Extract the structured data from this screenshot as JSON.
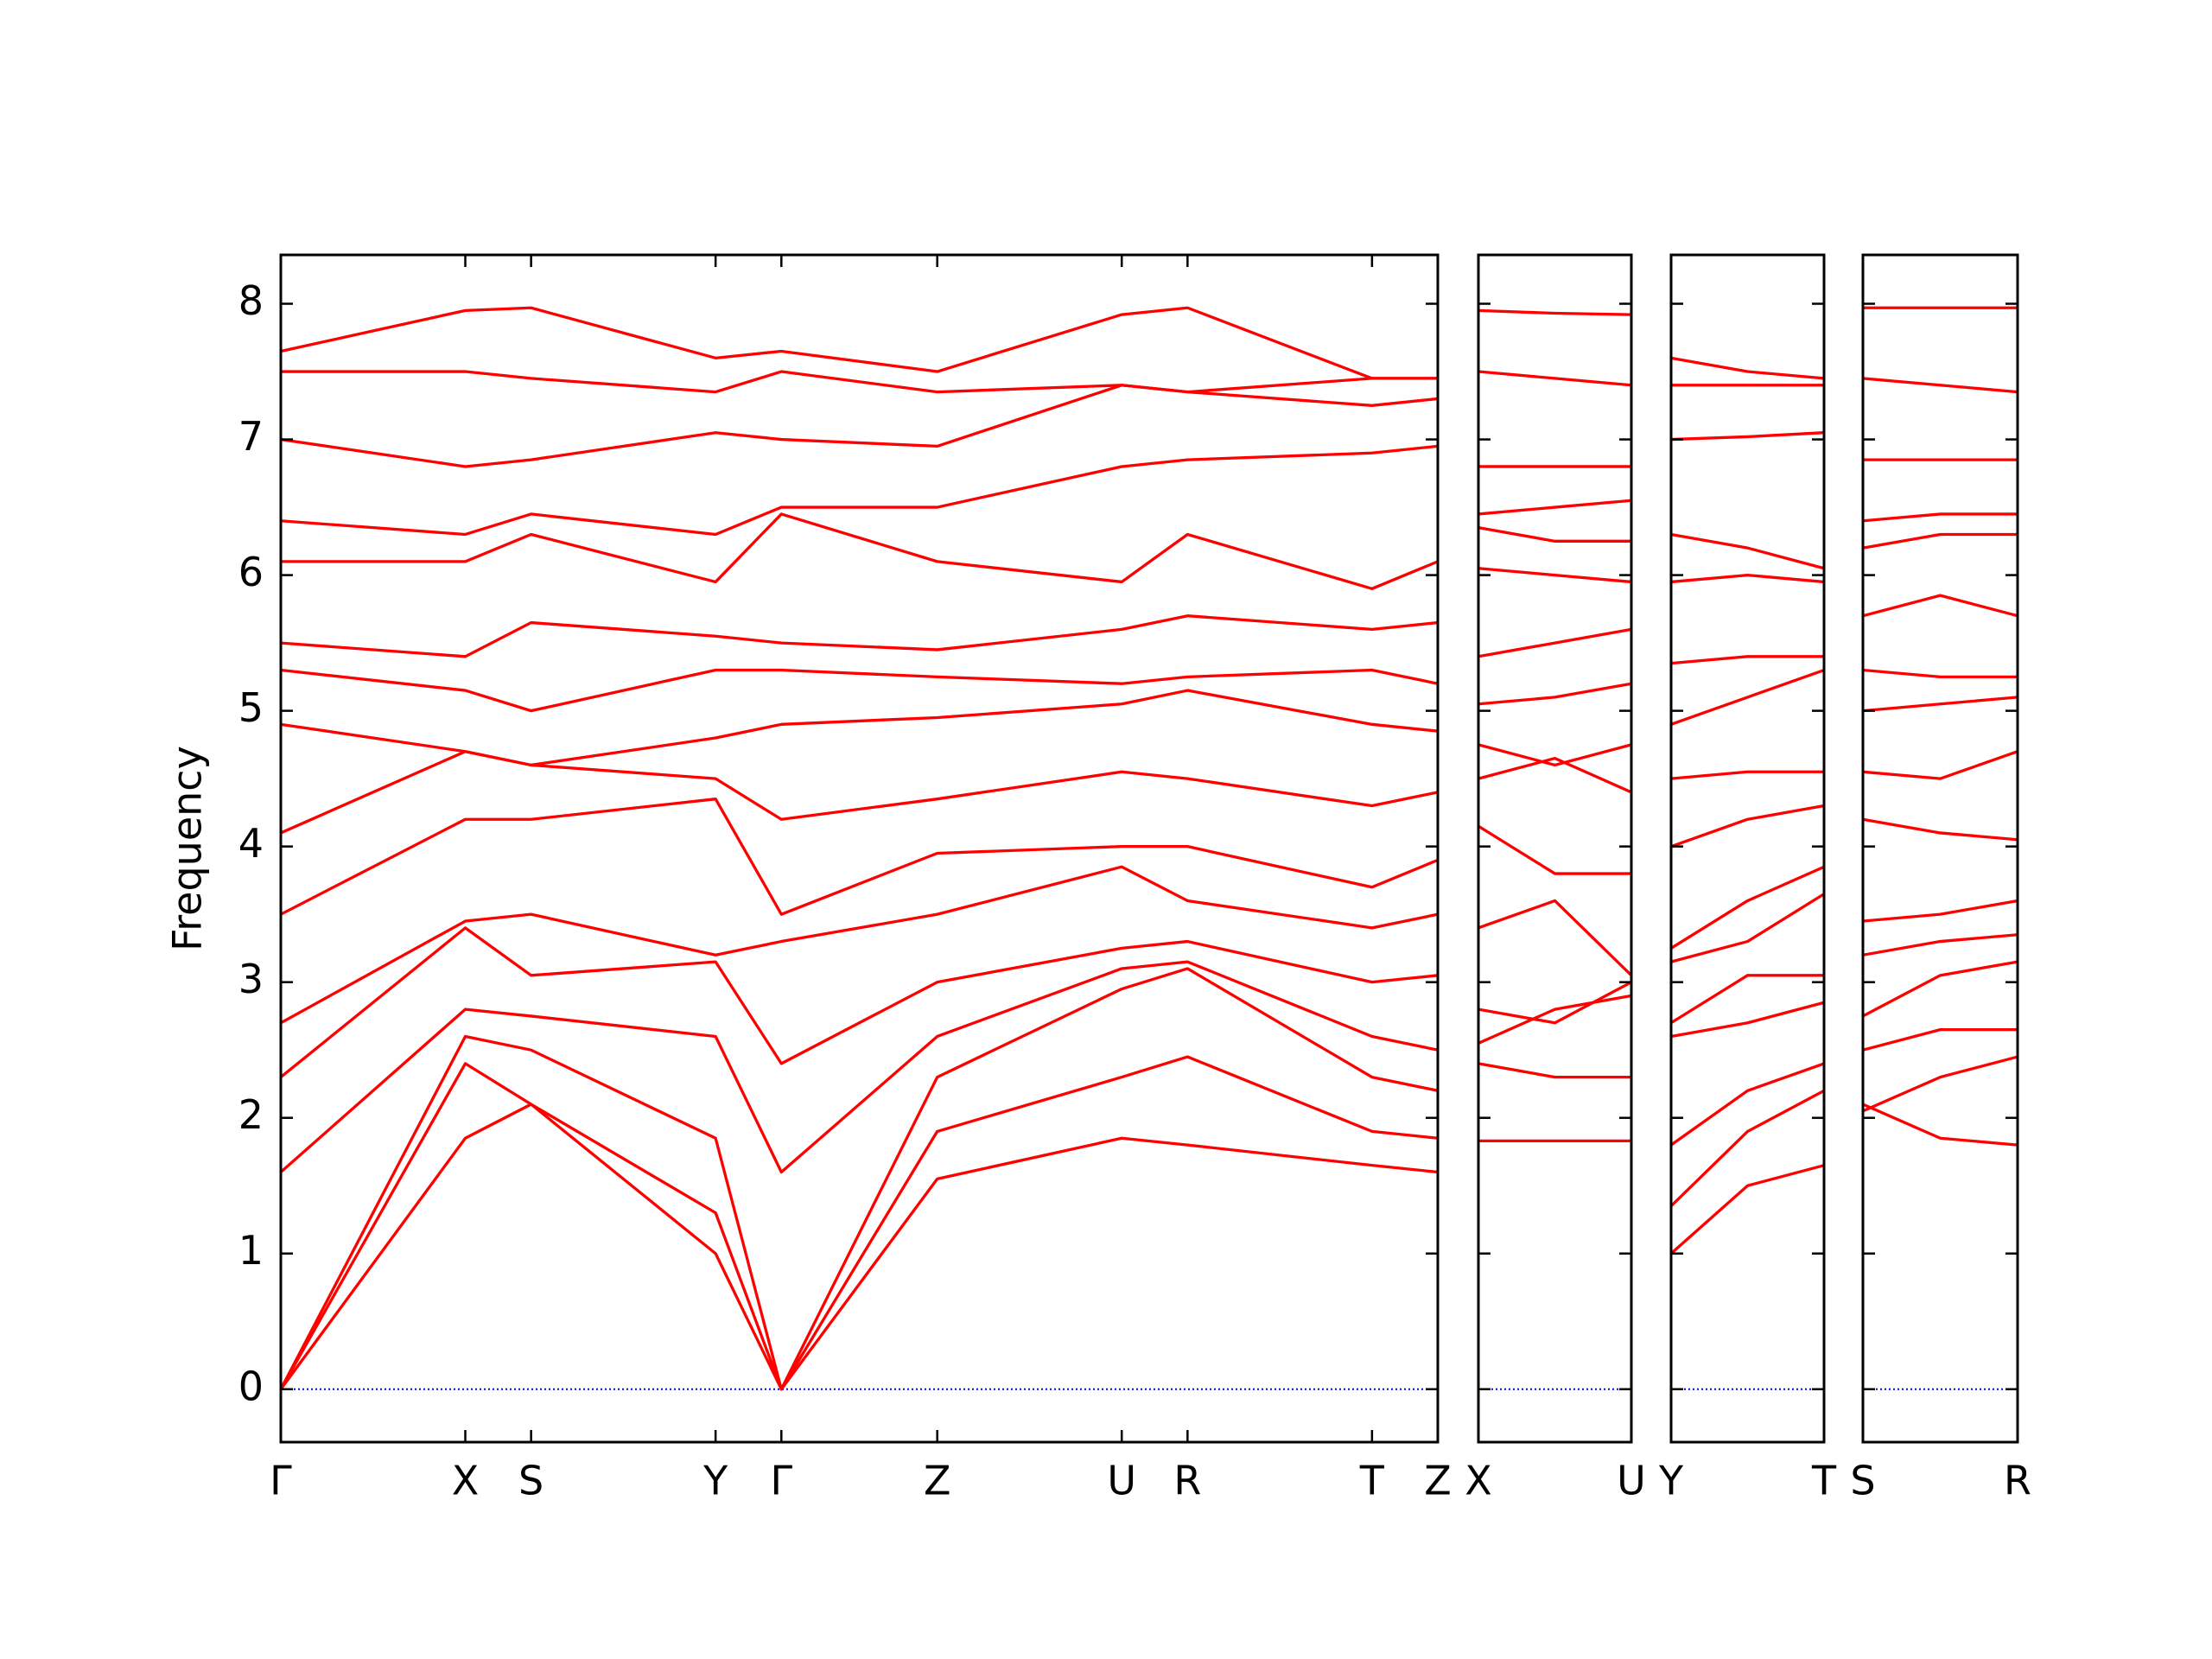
{
  "chart_data": [
    {
      "type": "line",
      "ylabel": "Frequency",
      "color": "#ff0000",
      "ytick_labels": true,
      "x": [
        0,
        1.29,
        1.75,
        3.04,
        3.5,
        4.59,
        5.88,
        6.34,
        7.63,
        8.09
      ],
      "xlim": [
        0,
        8.09
      ],
      "xticks": [
        {
          "value": 0,
          "label": "Γ"
        },
        {
          "value": 1.29,
          "label": "X"
        },
        {
          "value": 1.75,
          "label": "S"
        },
        {
          "value": 3.04,
          "label": "Y"
        },
        {
          "value": 3.5,
          "label": "Γ"
        },
        {
          "value": 4.59,
          "label": "Z"
        },
        {
          "value": 5.88,
          "label": "U"
        },
        {
          "value": 6.34,
          "label": "R"
        },
        {
          "value": 7.63,
          "label": "T"
        },
        {
          "value": 8.09,
          "label": "Z"
        }
      ],
      "ylim": [
        -0.39,
        8.36
      ],
      "yticks": [
        0,
        1,
        2,
        3,
        4,
        5,
        6,
        7,
        8
      ],
      "zero_line": {
        "value": 0,
        "color": "#0000ff"
      },
      "series": [
        {
          "values": [
            0,
            1.85,
            2.1,
            1.0,
            0,
            1.55,
            1.85,
            1.8,
            1.65,
            1.6
          ]
        },
        {
          "values": [
            0,
            2.4,
            2.1,
            1.3,
            0,
            1.9,
            2.3,
            2.45,
            1.9,
            1.85
          ]
        },
        {
          "values": [
            0,
            2.6,
            2.5,
            1.85,
            0,
            2.3,
            2.95,
            3.1,
            2.3,
            2.2
          ]
        },
        {
          "values": [
            1.6,
            2.8,
            2.75,
            2.6,
            1.6,
            2.6,
            3.1,
            3.15,
            2.6,
            2.5
          ]
        },
        {
          "values": [
            2.3,
            3.4,
            3.05,
            3.15,
            2.4,
            3.0,
            3.25,
            3.3,
            3.0,
            3.05
          ]
        },
        {
          "values": [
            2.7,
            3.45,
            3.5,
            3.2,
            3.3,
            3.5,
            3.85,
            3.6,
            3.4,
            3.5
          ]
        },
        {
          "values": [
            3.5,
            4.2,
            4.2,
            4.35,
            3.5,
            3.95,
            4.0,
            4.0,
            3.7,
            3.9
          ]
        },
        {
          "values": [
            4.1,
            4.7,
            4.6,
            4.5,
            4.2,
            4.35,
            4.55,
            4.5,
            4.3,
            4.4
          ]
        },
        {
          "values": [
            4.9,
            4.7,
            4.6,
            4.8,
            4.9,
            4.95,
            5.05,
            5.15,
            4.9,
            4.85
          ]
        },
        {
          "values": [
            5.3,
            5.15,
            5.0,
            5.3,
            5.3,
            5.25,
            5.2,
            5.25,
            5.3,
            5.2
          ]
        },
        {
          "values": [
            5.5,
            5.4,
            5.65,
            5.55,
            5.5,
            5.45,
            5.6,
            5.7,
            5.6,
            5.65
          ]
        },
        {
          "values": [
            6.1,
            6.1,
            6.3,
            5.95,
            6.45,
            6.1,
            5.95,
            6.3,
            5.9,
            6.1
          ]
        },
        {
          "values": [
            6.4,
            6.3,
            6.45,
            6.3,
            6.5,
            6.5,
            6.8,
            6.85,
            6.9,
            6.95
          ]
        },
        {
          "values": [
            7.0,
            6.8,
            6.85,
            7.05,
            7.0,
            6.95,
            7.4,
            7.35,
            7.25,
            7.3
          ]
        },
        {
          "values": [
            7.5,
            7.5,
            7.45,
            7.35,
            7.5,
            7.35,
            7.4,
            7.35,
            7.45,
            7.45
          ]
        },
        {
          "values": [
            7.65,
            7.95,
            7.97,
            7.6,
            7.65,
            7.5,
            7.92,
            7.97,
            7.45,
            7.45
          ]
        }
      ]
    },
    {
      "type": "line",
      "color": "#ff0000",
      "ytick_labels": false,
      "x": [
        0,
        0.5,
        1
      ],
      "xlim": [
        0,
        1
      ],
      "xticks": [
        {
          "value": 0,
          "label": "X"
        },
        {
          "value": 1,
          "label": "U"
        }
      ],
      "ylim": [
        -0.39,
        8.36
      ],
      "yticks": [
        0,
        1,
        2,
        3,
        4,
        5,
        6,
        7,
        8
      ],
      "zero_line": {
        "value": 0,
        "color": "#0000ff"
      },
      "series": [
        {
          "values": [
            1.83,
            1.83,
            1.83
          ]
        },
        {
          "values": [
            2.4,
            2.3,
            2.3
          ]
        },
        {
          "values": [
            2.55,
            2.8,
            2.9
          ]
        },
        {
          "values": [
            2.8,
            2.7,
            3.0
          ]
        },
        {
          "values": [
            3.4,
            3.6,
            3.05
          ]
        },
        {
          "values": [
            4.15,
            3.8,
            3.8
          ]
        },
        {
          "values": [
            4.5,
            4.65,
            4.4
          ]
        },
        {
          "values": [
            4.75,
            4.6,
            4.75
          ]
        },
        {
          "values": [
            5.05,
            5.1,
            5.2
          ]
        },
        {
          "values": [
            5.4,
            5.5,
            5.6
          ]
        },
        {
          "values": [
            6.05,
            6.0,
            5.95
          ]
        },
        {
          "values": [
            6.35,
            6.25,
            6.25
          ]
        },
        {
          "values": [
            6.45,
            6.5,
            6.55
          ]
        },
        {
          "values": [
            6.8,
            6.8,
            6.8
          ]
        },
        {
          "values": [
            7.5,
            7.45,
            7.4
          ]
        },
        {
          "values": [
            7.95,
            7.93,
            7.92
          ]
        }
      ]
    },
    {
      "type": "line",
      "color": "#ff0000",
      "ytick_labels": false,
      "x": [
        0,
        0.5,
        1
      ],
      "xlim": [
        0,
        1
      ],
      "xticks": [
        {
          "value": 0,
          "label": "Y"
        },
        {
          "value": 1,
          "label": "T"
        }
      ],
      "ylim": [
        -0.39,
        8.36
      ],
      "yticks": [
        0,
        1,
        2,
        3,
        4,
        5,
        6,
        7,
        8
      ],
      "zero_line": {
        "value": 0,
        "color": "#0000ff"
      },
      "series": [
        {
          "values": [
            1.0,
            1.5,
            1.65
          ]
        },
        {
          "values": [
            1.35,
            1.9,
            2.2
          ]
        },
        {
          "values": [
            1.8,
            2.2,
            2.4
          ]
        },
        {
          "values": [
            2.6,
            2.7,
            2.85
          ]
        },
        {
          "values": [
            2.7,
            3.05,
            3.05
          ]
        },
        {
          "values": [
            3.15,
            3.3,
            3.65
          ]
        },
        {
          "values": [
            3.25,
            3.6,
            3.85
          ]
        },
        {
          "values": [
            4.0,
            4.2,
            4.3
          ]
        },
        {
          "values": [
            4.5,
            4.55,
            4.55
          ]
        },
        {
          "values": [
            4.9,
            5.1,
            5.3
          ]
        },
        {
          "values": [
            5.35,
            5.4,
            5.4
          ]
        },
        {
          "values": [
            5.95,
            6.0,
            5.95
          ]
        },
        {
          "values": [
            6.3,
            6.2,
            6.05
          ]
        },
        {
          "values": [
            7.0,
            7.02,
            7.05
          ]
        },
        {
          "values": [
            7.4,
            7.4,
            7.4
          ]
        },
        {
          "values": [
            7.6,
            7.5,
            7.45
          ]
        }
      ]
    },
    {
      "type": "line",
      "color": "#ff0000",
      "ytick_labels": false,
      "x": [
        0,
        0.5,
        1
      ],
      "xlim": [
        0,
        1
      ],
      "xticks": [
        {
          "value": 0,
          "label": "S"
        },
        {
          "value": 1,
          "label": "R"
        }
      ],
      "ylim": [
        -0.39,
        8.36
      ],
      "yticks": [
        0,
        1,
        2,
        3,
        4,
        5,
        6,
        7,
        8
      ],
      "zero_line": {
        "value": 0,
        "color": "#0000ff"
      },
      "series": [
        {
          "values": [
            2.1,
            1.85,
            1.8
          ]
        },
        {
          "values": [
            2.05,
            2.3,
            2.45
          ]
        },
        {
          "values": [
            2.5,
            2.65,
            2.65
          ]
        },
        {
          "values": [
            2.75,
            3.05,
            3.15
          ]
        },
        {
          "values": [
            3.2,
            3.3,
            3.35
          ]
        },
        {
          "values": [
            3.45,
            3.5,
            3.6
          ]
        },
        {
          "values": [
            4.2,
            4.1,
            4.05
          ]
        },
        {
          "values": [
            4.55,
            4.5,
            4.7
          ]
        },
        {
          "values": [
            5.0,
            5.05,
            5.1
          ]
        },
        {
          "values": [
            5.3,
            5.25,
            5.25
          ]
        },
        {
          "values": [
            5.7,
            5.85,
            5.7
          ]
        },
        {
          "values": [
            6.2,
            6.3,
            6.3
          ]
        },
        {
          "values": [
            6.4,
            6.45,
            6.45
          ]
        },
        {
          "values": [
            6.85,
            6.85,
            6.85
          ]
        },
        {
          "values": [
            7.45,
            7.4,
            7.35
          ]
        },
        {
          "values": [
            7.97,
            7.97,
            7.97
          ]
        }
      ]
    }
  ]
}
